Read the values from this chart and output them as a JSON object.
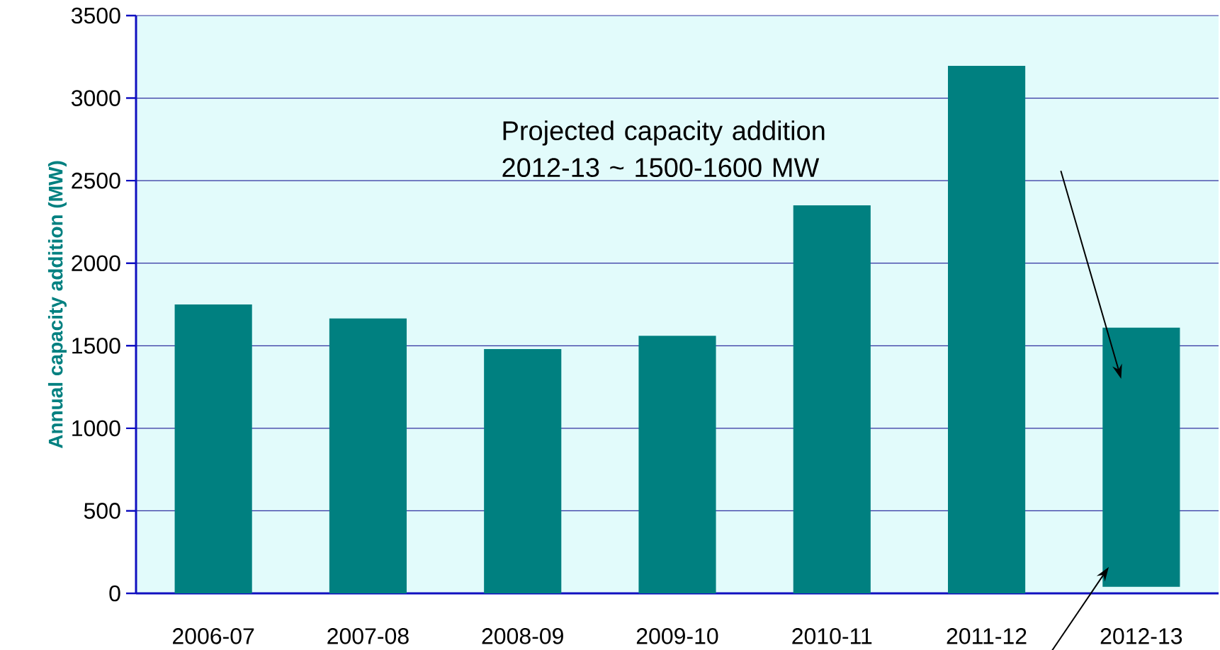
{
  "chart_data": {
    "type": "bar",
    "ylabel": "Annual capacity addition (MW)",
    "categories": [
      "2006-07",
      "2007-08",
      "2008-09",
      "2009-10",
      "2010-11",
      "2011-12",
      "2012-13"
    ],
    "values": [
      1750,
      1665,
      1480,
      1560,
      2350,
      3195,
      1570
    ],
    "base": [
      0,
      0,
      0,
      0,
      0,
      0,
      40
    ],
    "color": "#008080",
    "ylim": [
      0,
      3500
    ],
    "yticks": [
      0,
      500,
      1000,
      1500,
      2000,
      2500,
      3000,
      3500
    ],
    "grid": "y",
    "annotations": [
      "Projected capacity addition 2012-13 ~ 1500-1600 MW"
    ]
  }
}
